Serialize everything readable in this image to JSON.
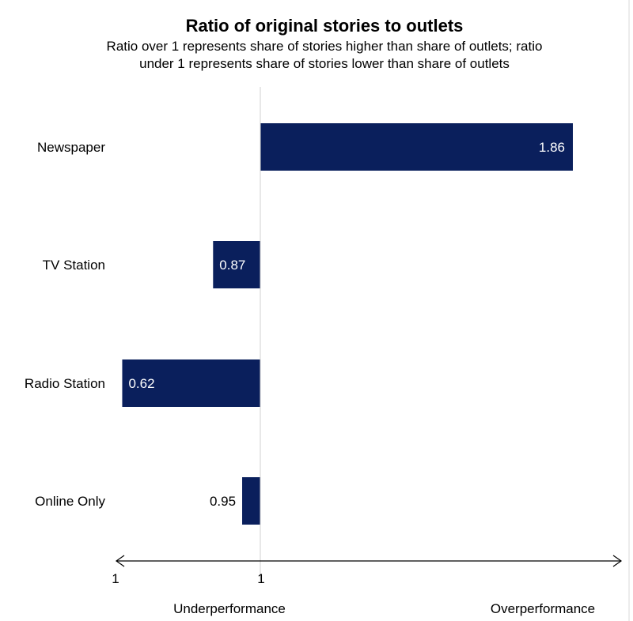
{
  "chart_data": {
    "type": "bar",
    "orientation": "horizontal",
    "title": "Ratio of original stories to outlets",
    "subtitle": [
      "Ratio over 1 represents share of stories higher than share of outlets; ratio",
      "under 1 represents share of stories lower than share of outlets"
    ],
    "categories": [
      "Newspaper",
      "TV Station",
      "Radio Station",
      "Online Only"
    ],
    "values": [
      1.86,
      0.87,
      0.62,
      0.95
    ],
    "value_labels": [
      "1.86",
      "0.87",
      "0.62",
      "0.95"
    ],
    "baseline": 1,
    "xlim": [
      0.54,
      2.26
    ],
    "x_tick_labels": [
      "1",
      "1"
    ],
    "axis_left_label": "Underperformance",
    "axis_right_label": "Overperformance",
    "grid": false,
    "legend": "none",
    "bar_color": "#0a1f5c"
  }
}
